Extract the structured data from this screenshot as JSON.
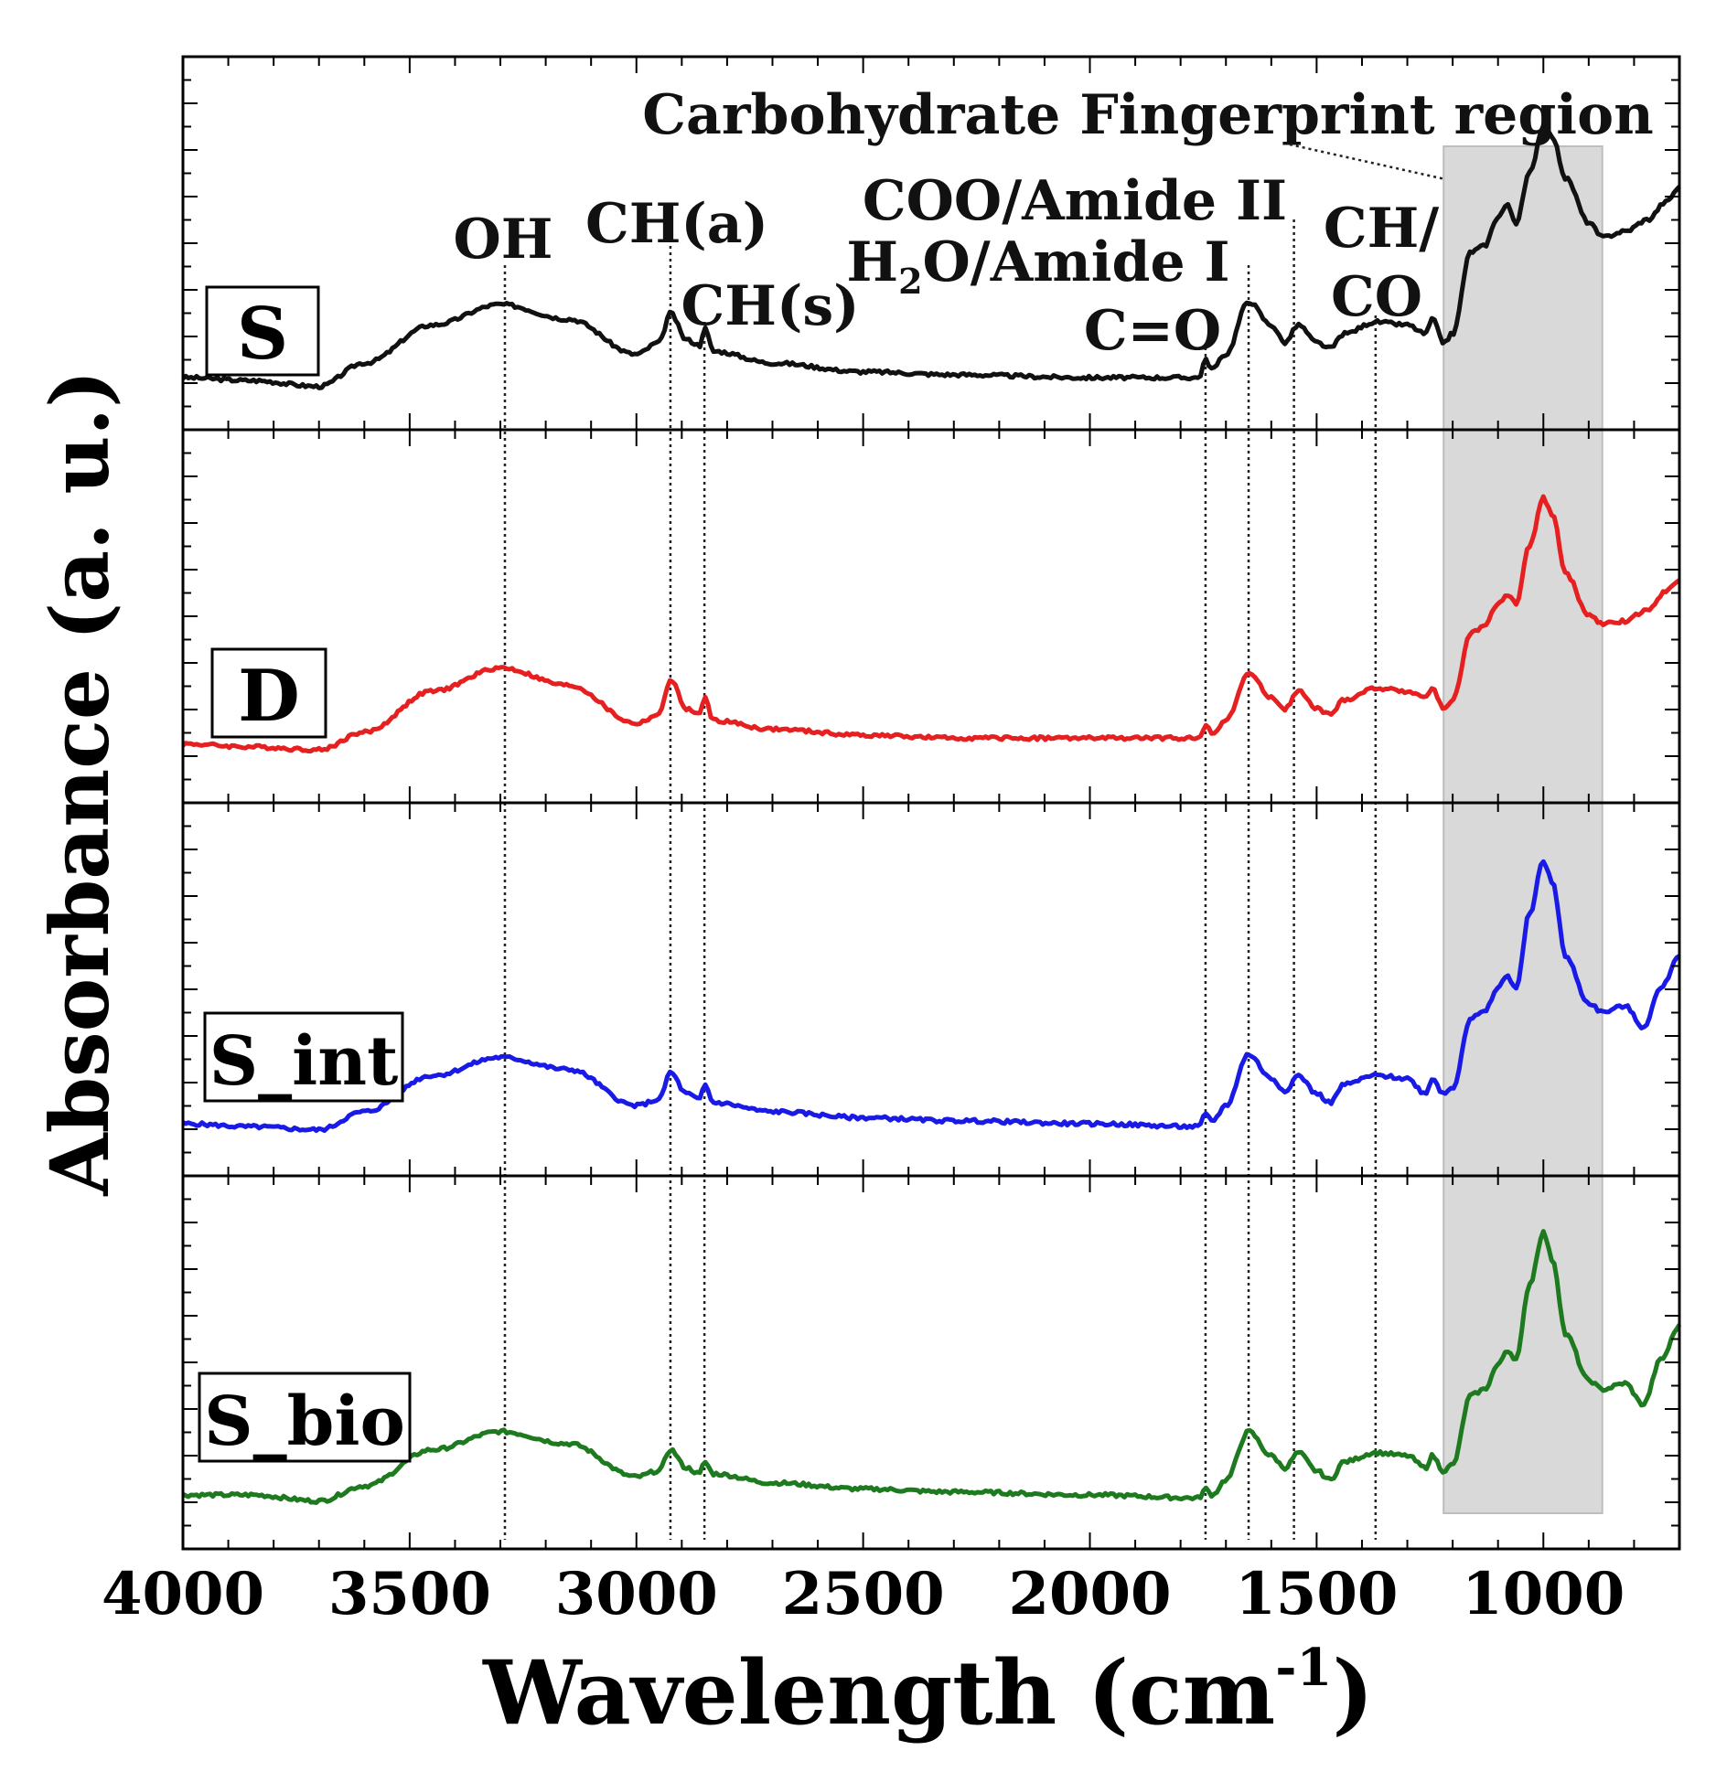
{
  "chart_data": {
    "type": "line",
    "xlabel": "Wavelength (cm",
    "xlabel_sup": "-1",
    "xlabel_close": ")",
    "ylabel": "Absorbance (a. u.)",
    "xlim": [
      4000,
      700
    ],
    "x_reversed": true,
    "x_ticks": [
      4000,
      3500,
      3000,
      2500,
      2000,
      1500,
      1000
    ],
    "region": {
      "label": "Carbohydrate Fingerprint region",
      "x_start": 1220,
      "x_end": 870,
      "color": "#d9d9d9"
    },
    "reference_lines": [
      3290,
      2925,
      2850,
      1745,
      1650,
      1550,
      1370
    ],
    "peak_labels": [
      {
        "text": "OH"
      },
      {
        "text": "CH(a)"
      },
      {
        "text": "CH(s)"
      },
      {
        "text": "COO/Amide II"
      },
      {
        "text": "H",
        "sub": "2",
        "rest": "O/Amide I"
      },
      {
        "text": "C=O"
      },
      {
        "text": "CH/"
      },
      {
        "text": "CO"
      }
    ],
    "series": [
      {
        "name": "S",
        "color": "#111111",
        "points": [
          [
            4000,
            0.1
          ],
          [
            3850,
            0.09
          ],
          [
            3700,
            0.07
          ],
          [
            3600,
            0.15
          ],
          [
            3450,
            0.28
          ],
          [
            3300,
            0.35
          ],
          [
            3150,
            0.3
          ],
          [
            3000,
            0.18
          ],
          [
            2950,
            0.22
          ],
          [
            2925,
            0.32
          ],
          [
            2890,
            0.23
          ],
          [
            2860,
            0.21
          ],
          [
            2850,
            0.27
          ],
          [
            2830,
            0.19
          ],
          [
            2700,
            0.15
          ],
          [
            2500,
            0.12
          ],
          [
            2300,
            0.11
          ],
          [
            2000,
            0.1
          ],
          [
            1760,
            0.1
          ],
          [
            1745,
            0.16
          ],
          [
            1730,
            0.13
          ],
          [
            1700,
            0.18
          ],
          [
            1650,
            0.36
          ],
          [
            1600,
            0.28
          ],
          [
            1570,
            0.22
          ],
          [
            1540,
            0.28
          ],
          [
            1500,
            0.22
          ],
          [
            1470,
            0.2
          ],
          [
            1440,
            0.25
          ],
          [
            1370,
            0.29
          ],
          [
            1300,
            0.28
          ],
          [
            1260,
            0.25
          ],
          [
            1245,
            0.3
          ],
          [
            1220,
            0.22
          ],
          [
            1200,
            0.25
          ],
          [
            1160,
            0.53
          ],
          [
            1130,
            0.55
          ],
          [
            1100,
            0.65
          ],
          [
            1080,
            0.69
          ],
          [
            1060,
            0.63
          ],
          [
            1030,
            0.8
          ],
          [
            1000,
            0.96
          ],
          [
            980,
            0.92
          ],
          [
            950,
            0.78
          ],
          [
            900,
            0.63
          ],
          [
            870,
            0.58
          ],
          [
            820,
            0.6
          ],
          [
            770,
            0.64
          ],
          [
            730,
            0.7
          ],
          [
            700,
            0.75
          ]
        ]
      },
      {
        "name": "D",
        "color": "#e62020",
        "points": [
          [
            4000,
            0.12
          ],
          [
            3850,
            0.11
          ],
          [
            3700,
            0.1
          ],
          [
            3600,
            0.16
          ],
          [
            3450,
            0.3
          ],
          [
            3300,
            0.38
          ],
          [
            3150,
            0.32
          ],
          [
            3000,
            0.19
          ],
          [
            2950,
            0.22
          ],
          [
            2925,
            0.34
          ],
          [
            2890,
            0.24
          ],
          [
            2860,
            0.22
          ],
          [
            2850,
            0.28
          ],
          [
            2830,
            0.2
          ],
          [
            2700,
            0.17
          ],
          [
            2500,
            0.15
          ],
          [
            2300,
            0.14
          ],
          [
            2000,
            0.14
          ],
          [
            1760,
            0.14
          ],
          [
            1745,
            0.18
          ],
          [
            1730,
            0.16
          ],
          [
            1700,
            0.2
          ],
          [
            1650,
            0.36
          ],
          [
            1600,
            0.28
          ],
          [
            1570,
            0.24
          ],
          [
            1540,
            0.3
          ],
          [
            1500,
            0.24
          ],
          [
            1470,
            0.22
          ],
          [
            1440,
            0.27
          ],
          [
            1370,
            0.31
          ],
          [
            1300,
            0.3
          ],
          [
            1260,
            0.28
          ],
          [
            1245,
            0.31
          ],
          [
            1220,
            0.24
          ],
          [
            1200,
            0.27
          ],
          [
            1160,
            0.5
          ],
          [
            1130,
            0.52
          ],
          [
            1100,
            0.6
          ],
          [
            1080,
            0.63
          ],
          [
            1060,
            0.6
          ],
          [
            1030,
            0.8
          ],
          [
            1000,
            0.96
          ],
          [
            980,
            0.9
          ],
          [
            950,
            0.7
          ],
          [
            900,
            0.56
          ],
          [
            870,
            0.53
          ],
          [
            820,
            0.54
          ],
          [
            770,
            0.58
          ],
          [
            730,
            0.64
          ],
          [
            700,
            0.68
          ]
        ]
      },
      {
        "name": "S_int",
        "color": "#1a1ae6",
        "points": [
          [
            4000,
            0.1
          ],
          [
            3850,
            0.09
          ],
          [
            3700,
            0.08
          ],
          [
            3600,
            0.14
          ],
          [
            3450,
            0.26
          ],
          [
            3300,
            0.32
          ],
          [
            3150,
            0.28
          ],
          [
            3000,
            0.16
          ],
          [
            2950,
            0.18
          ],
          [
            2925,
            0.27
          ],
          [
            2890,
            0.2
          ],
          [
            2860,
            0.18
          ],
          [
            2850,
            0.23
          ],
          [
            2830,
            0.17
          ],
          [
            2700,
            0.14
          ],
          [
            2500,
            0.12
          ],
          [
            2300,
            0.11
          ],
          [
            2000,
            0.1
          ],
          [
            1760,
            0.09
          ],
          [
            1745,
            0.13
          ],
          [
            1730,
            0.11
          ],
          [
            1700,
            0.16
          ],
          [
            1650,
            0.33
          ],
          [
            1600,
            0.25
          ],
          [
            1570,
            0.21
          ],
          [
            1540,
            0.26
          ],
          [
            1500,
            0.2
          ],
          [
            1470,
            0.17
          ],
          [
            1440,
            0.23
          ],
          [
            1370,
            0.26
          ],
          [
            1300,
            0.25
          ],
          [
            1260,
            0.2
          ],
          [
            1245,
            0.25
          ],
          [
            1220,
            0.2
          ],
          [
            1200,
            0.22
          ],
          [
            1160,
            0.45
          ],
          [
            1130,
            0.47
          ],
          [
            1100,
            0.55
          ],
          [
            1080,
            0.59
          ],
          [
            1060,
            0.55
          ],
          [
            1030,
            0.8
          ],
          [
            1000,
            0.97
          ],
          [
            980,
            0.9
          ],
          [
            950,
            0.65
          ],
          [
            900,
            0.5
          ],
          [
            870,
            0.47
          ],
          [
            820,
            0.49
          ],
          [
            780,
            0.42
          ],
          [
            740,
            0.55
          ],
          [
            700,
            0.66
          ]
        ]
      },
      {
        "name": "S_bio",
        "color": "#1e7a1e",
        "points": [
          [
            4000,
            0.1
          ],
          [
            3850,
            0.1
          ],
          [
            3700,
            0.08
          ],
          [
            3600,
            0.13
          ],
          [
            3450,
            0.25
          ],
          [
            3300,
            0.31
          ],
          [
            3150,
            0.27
          ],
          [
            3000,
            0.16
          ],
          [
            2950,
            0.18
          ],
          [
            2925,
            0.25
          ],
          [
            2890,
            0.19
          ],
          [
            2860,
            0.17
          ],
          [
            2850,
            0.21
          ],
          [
            2830,
            0.17
          ],
          [
            2700,
            0.14
          ],
          [
            2500,
            0.12
          ],
          [
            2300,
            0.11
          ],
          [
            2000,
            0.1
          ],
          [
            1760,
            0.09
          ],
          [
            1745,
            0.12
          ],
          [
            1730,
            0.1
          ],
          [
            1700,
            0.15
          ],
          [
            1650,
            0.31
          ],
          [
            1600,
            0.23
          ],
          [
            1570,
            0.19
          ],
          [
            1540,
            0.24
          ],
          [
            1500,
            0.18
          ],
          [
            1470,
            0.15
          ],
          [
            1440,
            0.21
          ],
          [
            1370,
            0.24
          ],
          [
            1300,
            0.23
          ],
          [
            1260,
            0.19
          ],
          [
            1245,
            0.23
          ],
          [
            1220,
            0.18
          ],
          [
            1200,
            0.2
          ],
          [
            1160,
            0.43
          ],
          [
            1130,
            0.45
          ],
          [
            1100,
            0.53
          ],
          [
            1080,
            0.58
          ],
          [
            1060,
            0.55
          ],
          [
            1030,
            0.8
          ],
          [
            1000,
            0.97
          ],
          [
            980,
            0.88
          ],
          [
            950,
            0.63
          ],
          [
            900,
            0.48
          ],
          [
            870,
            0.45
          ],
          [
            820,
            0.47
          ],
          [
            780,
            0.4
          ],
          [
            740,
            0.55
          ],
          [
            700,
            0.66
          ]
        ]
      }
    ]
  }
}
